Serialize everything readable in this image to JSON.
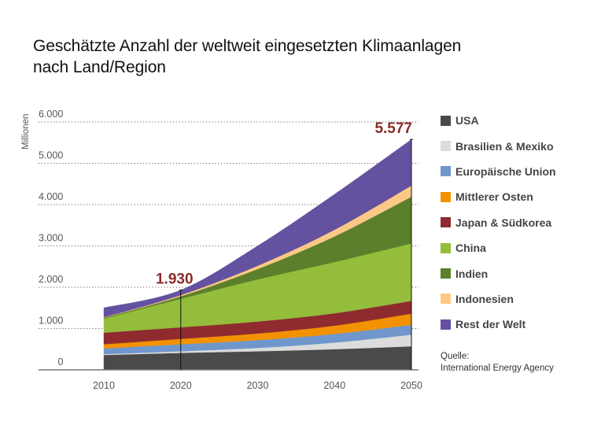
{
  "title_lines": [
    "Geschätzte Anzahl der weltweit eingesetzten Klimaanlagen",
    "nach Land/Region"
  ],
  "source": {
    "label": "Quelle:",
    "name": "International Energy Agency"
  },
  "chart_data": {
    "type": "area",
    "stacked": true,
    "title": "Geschätzte Anzahl der weltweit eingesetzten Klimaanlagen nach Land/Region",
    "xlabel": "",
    "ylabel": "Millionen",
    "x": [
      2010,
      2020,
      2030,
      2040,
      2050
    ],
    "x_ticks": [
      "2010",
      "2020",
      "2030",
      "2040",
      "2050"
    ],
    "ylim": [
      0,
      6000
    ],
    "y_ticks": [
      0,
      1000,
      2000,
      3000,
      4000,
      5000,
      6000
    ],
    "y_tick_labels": [
      "0",
      "1.000",
      "2.000",
      "3.000",
      "4.000",
      "5.000",
      "6.000"
    ],
    "grid": "horizontal-dotted",
    "legend_position": "right",
    "series": [
      {
        "name": "USA",
        "color": "#4a4a4a",
        "values": [
          360,
          410,
          450,
          500,
          570
        ]
      },
      {
        "name": "Brasilien & Mexiko",
        "color": "#dcdcdc",
        "values": [
          20,
          40,
          80,
          160,
          280
        ]
      },
      {
        "name": "Europäische Union",
        "color": "#7097cc",
        "values": [
          140,
          170,
          190,
          210,
          240
        ]
      },
      {
        "name": "Mittlerer Osten",
        "color": "#f39200",
        "values": [
          100,
          130,
          160,
          200,
          270
        ]
      },
      {
        "name": "Japan & Südkorea",
        "color": "#8f2b2f",
        "values": [
          280,
          280,
          290,
          300,
          310
        ]
      },
      {
        "name": "China",
        "color": "#93bd3b",
        "values": [
          340,
          690,
          1020,
          1240,
          1390
        ]
      },
      {
        "name": "Indien",
        "color": "#5b7f2a",
        "values": [
          20,
          60,
          250,
          620,
          1130
        ]
      },
      {
        "name": "Indonesien",
        "color": "#fbc985",
        "values": [
          10,
          30,
          80,
          160,
          270
        ]
      },
      {
        "name": "Rest der Welt",
        "color": "#6452a0",
        "values": [
          230,
          120,
          480,
          860,
          1117
        ]
      }
    ],
    "annotations": [
      {
        "x": 2020,
        "value": 1930,
        "label": "1.930",
        "color": "#8c2a2a"
      },
      {
        "x": 2050,
        "value": 5577,
        "label": "5.577",
        "color": "#8c2a2a"
      }
    ]
  }
}
